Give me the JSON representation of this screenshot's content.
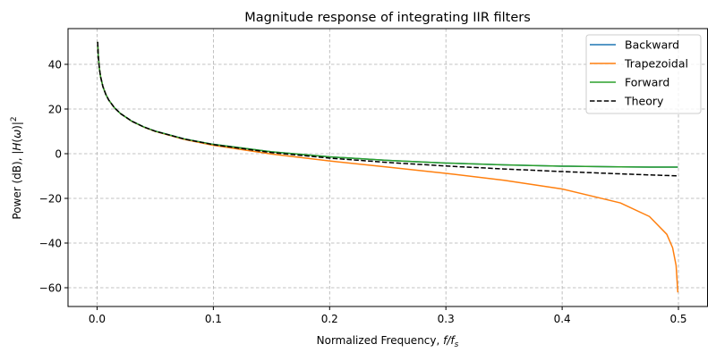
{
  "chart_data": {
    "type": "line",
    "title": "Magnitude response of integrating IIR filters",
    "xlabel": "Normalized Frequency, f/f_s",
    "xlabel_parts": {
      "text": "Normalized Frequency, ",
      "math": "f/f",
      "sub": "s"
    },
    "ylabel": "Power (dB), |H(ω)|²",
    "ylabel_parts": {
      "text": "Power (dB), |",
      "math": "H",
      "mid": "(",
      "omega": "ω",
      "end": ")|",
      "sup": "2"
    },
    "xlim": [
      -0.025,
      0.525
    ],
    "ylim": [
      -68.4,
      56
    ],
    "xticks": [
      0.0,
      0.1,
      0.2,
      0.3,
      0.4,
      0.5
    ],
    "xtick_labels": [
      "0.0",
      "0.1",
      "0.2",
      "0.3",
      "0.4",
      "0.5"
    ],
    "yticks": [
      40,
      20,
      0,
      -20,
      -40,
      -60
    ],
    "ytick_labels": [
      "40",
      "20",
      "0",
      "−20",
      "−40",
      "−60"
    ],
    "grid": true,
    "legend_position": "top-right",
    "x": [
      0.0005,
      0.001,
      0.002,
      0.003,
      0.005,
      0.0075,
      0.01,
      0.015,
      0.02,
      0.03,
      0.04,
      0.05,
      0.075,
      0.1,
      0.15,
      0.2,
      0.25,
      0.3,
      0.35,
      0.4,
      0.45,
      0.475,
      0.49,
      0.495,
      0.498,
      0.4995
    ],
    "series": [
      {
        "name": "Backward",
        "color": "#1f77b4",
        "dash": false,
        "values": [
          50.06,
          44.04,
          38.02,
          34.49,
          30.06,
          26.54,
          24.04,
          20.51,
          18.02,
          14.51,
          12.02,
          10.09,
          6.62,
          4.18,
          0.84,
          -1.41,
          -3.01,
          -4.18,
          -5.02,
          -5.58,
          -5.91,
          -5.99,
          -6.02,
          -6.02,
          -6.02,
          -6.02
        ]
      },
      {
        "name": "Trapezoidal",
        "color": "#ff7f0e",
        "dash": false,
        "values": [
          50.06,
          44.04,
          38.02,
          34.49,
          30.06,
          26.54,
          24.03,
          20.5,
          18.0,
          14.47,
          11.95,
          9.99,
          6.38,
          3.74,
          -0.16,
          -3.25,
          -6.02,
          -8.8,
          -11.88,
          -15.79,
          -22.03,
          -28.1,
          -36.07,
          -42.1,
          -50.06,
          -62.1
        ]
      },
      {
        "name": "Forward",
        "color": "#2ca02c",
        "dash": false,
        "values": [
          50.06,
          44.04,
          38.02,
          34.49,
          30.06,
          26.54,
          24.04,
          20.51,
          18.02,
          14.51,
          12.02,
          10.09,
          6.62,
          4.18,
          0.84,
          -1.41,
          -3.01,
          -4.18,
          -5.02,
          -5.58,
          -5.91,
          -5.99,
          -6.02,
          -6.02,
          -6.02,
          -6.02
        ]
      },
      {
        "name": "Theory",
        "color": "#000000",
        "dash": true,
        "values": [
          50.06,
          44.04,
          38.02,
          34.49,
          30.06,
          26.54,
          24.04,
          20.51,
          18.02,
          14.49,
          12.0,
          10.06,
          6.54,
          4.04,
          0.51,
          -1.98,
          -3.92,
          -5.51,
          -6.84,
          -8.0,
          -9.03,
          -9.5,
          -9.77,
          -9.86,
          -9.91,
          -9.93
        ]
      }
    ]
  }
}
